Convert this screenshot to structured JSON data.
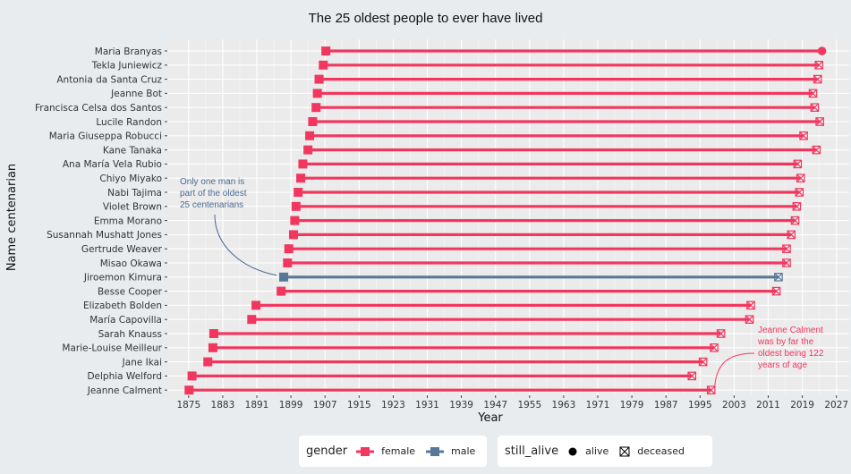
{
  "chart_data": {
    "type": "dumbbell",
    "title": "The 25 oldest people to ever have lived",
    "xlabel": "Year",
    "ylabel": "Name centenarian",
    "xlim": [
      1870,
      2030
    ],
    "xticks": [
      1875,
      1883,
      1891,
      1899,
      1907,
      1915,
      1923,
      1931,
      1939,
      1947,
      1955,
      1963,
      1971,
      1979,
      1987,
      1995,
      2003,
      2011,
      2019,
      2027
    ],
    "colors": {
      "female": "#f2375f",
      "male": "#58789a",
      "panel": "#ebebeb",
      "grid": "#ffffff"
    },
    "people": [
      {
        "name": "Maria Branyas",
        "birth": 1907.2,
        "death": 2023.6,
        "gender": "female",
        "still_alive": "alive"
      },
      {
        "name": "Tekla Juniewicz",
        "birth": 1906.6,
        "death": 2022.9,
        "gender": "female",
        "still_alive": "deceased"
      },
      {
        "name": "Antonia da Santa Cruz",
        "birth": 1905.6,
        "death": 2022.6,
        "gender": "female",
        "still_alive": "deceased"
      },
      {
        "name": "Jeanne Bot",
        "birth": 1905.2,
        "death": 2021.5,
        "gender": "female",
        "still_alive": "deceased"
      },
      {
        "name": "Francisca Celsa dos Santos",
        "birth": 1904.9,
        "death": 2021.9,
        "gender": "female",
        "still_alive": "deceased"
      },
      {
        "name": "Lucile Randon",
        "birth": 1904.1,
        "death": 2023.1,
        "gender": "female",
        "still_alive": "deceased"
      },
      {
        "name": "Maria Giuseppa Robucci",
        "birth": 1903.4,
        "death": 2019.3,
        "gender": "female",
        "still_alive": "deceased"
      },
      {
        "name": "Kane Tanaka",
        "birth": 1903.0,
        "death": 2022.3,
        "gender": "female",
        "still_alive": "deceased"
      },
      {
        "name": "Ana María Vela Rubio",
        "birth": 1901.8,
        "death": 2017.9,
        "gender": "female",
        "still_alive": "deceased"
      },
      {
        "name": "Chiyo Miyako",
        "birth": 1901.3,
        "death": 2018.6,
        "gender": "female",
        "still_alive": "deceased"
      },
      {
        "name": "Nabi Tajima",
        "birth": 1900.7,
        "death": 2018.3,
        "gender": "female",
        "still_alive": "deceased"
      },
      {
        "name": "Violet Brown",
        "birth": 1900.2,
        "death": 2017.7,
        "gender": "female",
        "still_alive": "deceased"
      },
      {
        "name": "Emma Morano",
        "birth": 1899.9,
        "death": 2017.3,
        "gender": "female",
        "still_alive": "deceased"
      },
      {
        "name": "Susannah Mushatt Jones",
        "birth": 1899.6,
        "death": 2016.4,
        "gender": "female",
        "still_alive": "deceased"
      },
      {
        "name": "Gertrude Weaver",
        "birth": 1898.5,
        "death": 2015.3,
        "gender": "female",
        "still_alive": "deceased"
      },
      {
        "name": "Misao Okawa",
        "birth": 1898.2,
        "death": 2015.3,
        "gender": "female",
        "still_alive": "deceased"
      },
      {
        "name": "Jiroemon Kimura",
        "birth": 1897.3,
        "death": 2013.4,
        "gender": "male",
        "still_alive": "deceased"
      },
      {
        "name": "Besse Cooper",
        "birth": 1896.7,
        "death": 2012.9,
        "gender": "female",
        "still_alive": "deceased"
      },
      {
        "name": "Elizabeth Bolden",
        "birth": 1890.8,
        "death": 2006.9,
        "gender": "female",
        "still_alive": "deceased"
      },
      {
        "name": "María Capovilla",
        "birth": 1889.8,
        "death": 2006.6,
        "gender": "female",
        "still_alive": "deceased"
      },
      {
        "name": "Sarah Knauss",
        "birth": 1880.9,
        "death": 1999.9,
        "gender": "female",
        "still_alive": "deceased"
      },
      {
        "name": "Marie-Louise Meilleur",
        "birth": 1880.7,
        "death": 1998.3,
        "gender": "female",
        "still_alive": "deceased"
      },
      {
        "name": "Jane Ikai",
        "birth": 1879.5,
        "death": 1995.7,
        "gender": "female",
        "still_alive": "deceased"
      },
      {
        "name": "Delphia Welford",
        "birth": 1875.8,
        "death": 1993.1,
        "gender": "female",
        "still_alive": "deceased"
      },
      {
        "name": "Jeanne Calment",
        "birth": 1875.1,
        "death": 1997.6,
        "gender": "female",
        "still_alive": "deceased"
      }
    ],
    "annotations": [
      {
        "text": "Only one man is part of the oldest 25 centenarians",
        "lines": [
          "Only one man is",
          "part of the oldest",
          "25 centenarians"
        ],
        "color": "#4a6a92"
      },
      {
        "text": "Jeanne Calment was by far the oldest being 122 years of age",
        "lines": [
          "Jeanne Calment",
          "was by far the",
          "oldest being 122",
          "years of age"
        ],
        "color": "#f2375f"
      }
    ],
    "legend": {
      "gender_title": "gender",
      "gender_items": [
        "female",
        "male"
      ],
      "alive_title": "still_alive",
      "alive_items": [
        "alive",
        "deceased"
      ]
    }
  }
}
